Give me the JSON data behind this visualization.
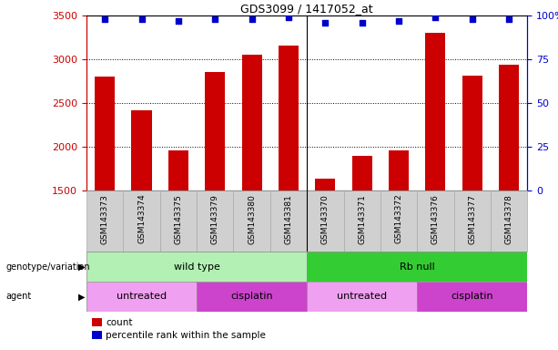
{
  "title": "GDS3099 / 1417052_at",
  "samples": [
    "GSM143373",
    "GSM143374",
    "GSM143375",
    "GSM143379",
    "GSM143380",
    "GSM143381",
    "GSM143370",
    "GSM143371",
    "GSM143372",
    "GSM143376",
    "GSM143377",
    "GSM143378"
  ],
  "counts": [
    2800,
    2420,
    1960,
    2860,
    3050,
    3160,
    1640,
    1900,
    1960,
    3300,
    2820,
    2940
  ],
  "percentiles": [
    98,
    98,
    97,
    98,
    98,
    99,
    96,
    96,
    97,
    99,
    98,
    98
  ],
  "ylim_left": [
    1500,
    3500
  ],
  "ylim_right": [
    0,
    100
  ],
  "yticks_left": [
    1500,
    2000,
    2500,
    3000,
    3500
  ],
  "yticks_right": [
    0,
    25,
    50,
    75,
    100
  ],
  "bar_color": "#cc0000",
  "dot_color": "#0000cc",
  "title_color": "#000000",
  "left_axis_color": "#cc0000",
  "right_axis_color": "#0000cc",
  "separator_at": 5.5,
  "genotype_groups": [
    {
      "label": "wild type",
      "start": 0,
      "end": 6,
      "color": "#b3f0b3"
    },
    {
      "label": "Rb null",
      "start": 6,
      "end": 12,
      "color": "#33cc33"
    }
  ],
  "agent_groups": [
    {
      "label": "untreated",
      "start": 0,
      "end": 3,
      "color": "#f0a0f0"
    },
    {
      "label": "cisplatin",
      "start": 3,
      "end": 6,
      "color": "#cc44cc"
    },
    {
      "label": "untreated",
      "start": 6,
      "end": 9,
      "color": "#f0a0f0"
    },
    {
      "label": "cisplatin",
      "start": 9,
      "end": 12,
      "color": "#cc44cc"
    }
  ],
  "legend_items": [
    {
      "label": "count",
      "color": "#cc0000"
    },
    {
      "label": "percentile rank within the sample",
      "color": "#0000cc"
    }
  ],
  "tick_bg_color": "#d0d0d0",
  "tick_border_color": "#aaaaaa",
  "grid_dotted": [
    2000,
    2500,
    3000
  ]
}
